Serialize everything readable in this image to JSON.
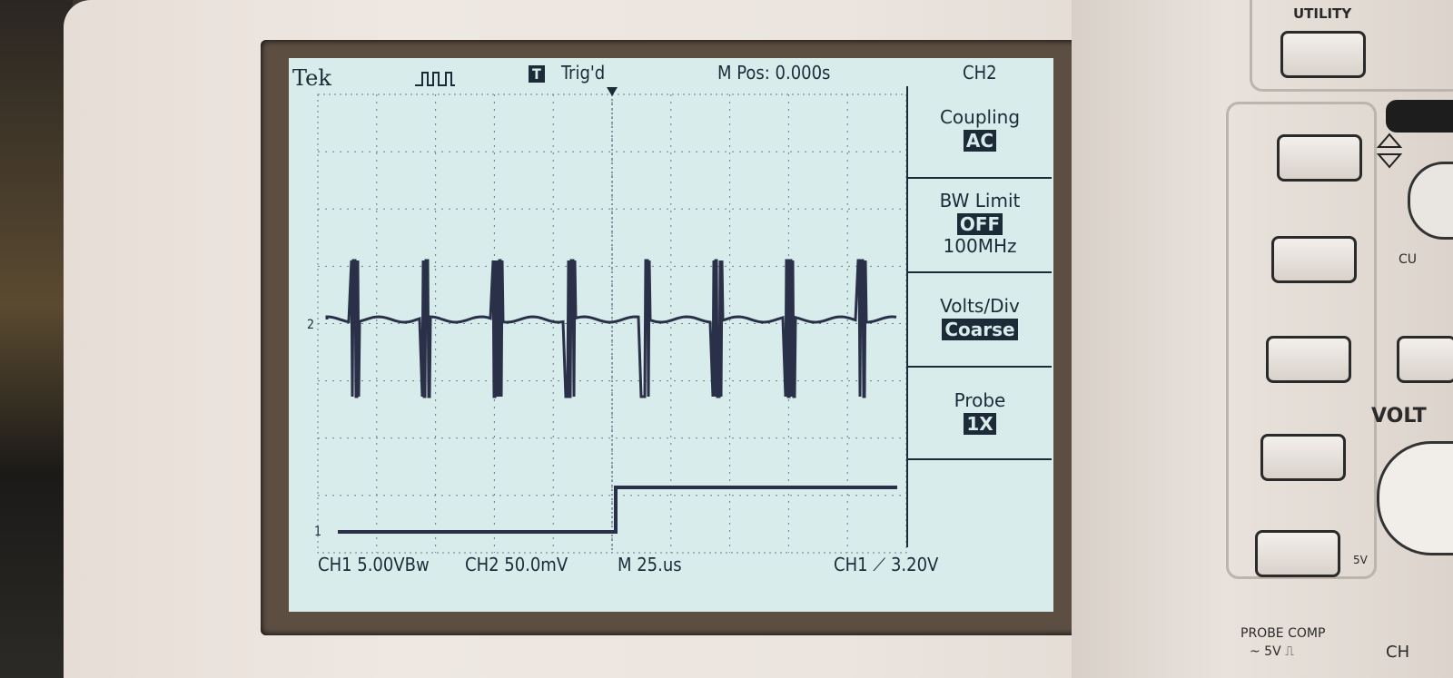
{
  "header": {
    "brand": "Tek",
    "trigger_symbol": "T",
    "trigger_status": "Trig'd",
    "position": "M Pos: 0.000s",
    "channel": "CH2"
  },
  "menu": [
    {
      "label": "Coupling",
      "value": "AC",
      "extra": ""
    },
    {
      "label": "BW Limit",
      "value": "OFF",
      "extra": "100MHz"
    },
    {
      "label": "Volts/Div",
      "value": "Coarse",
      "extra": ""
    },
    {
      "label": "Probe",
      "value": "1X",
      "extra": ""
    }
  ],
  "footer": {
    "ch1_scale": "CH1  5.00VBw",
    "ch2_scale": "CH2  50.0mV",
    "timebase": "M 25.us",
    "trigger": "CH1  ⟋  3.20V"
  },
  "markers": {
    "ch1": "1",
    "ch2": "2"
  },
  "panel": {
    "utility": "UTILITY",
    "probe_comp": "PROBE COMP",
    "probe_comp_value": "~ 5V ⎍",
    "volts": "VOLT",
    "five_v": "5V",
    "cu": "CU",
    "ch": "CH"
  }
}
